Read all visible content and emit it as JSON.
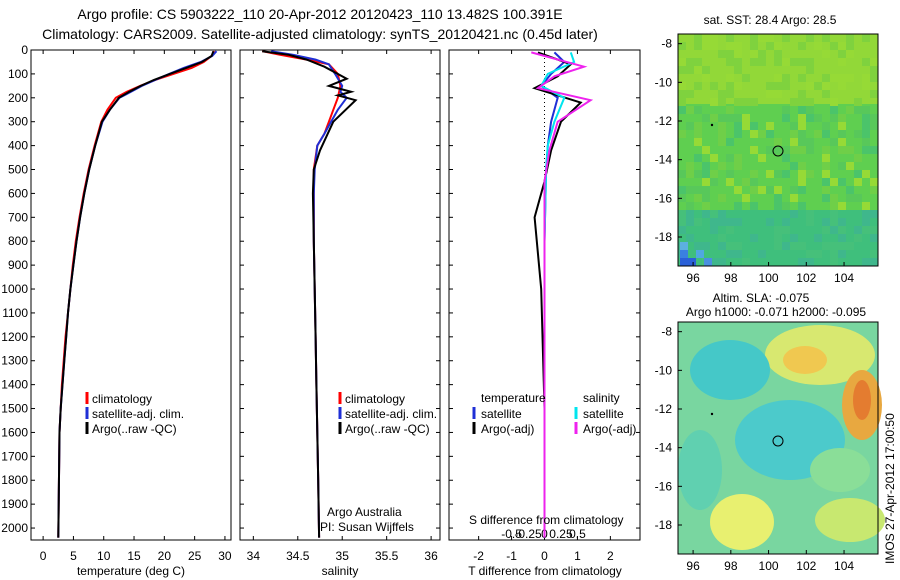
{
  "header": {
    "line1": "Argo profile: CS 5903222_110 20-Apr-2012 20120423_110 13.482S 100.391E",
    "line2": "Climatology: CARS2009. Satellite-adjusted climatology: synTS_20120421.nc (0.45d later)"
  },
  "colors": {
    "climatology": "#ff0000",
    "satellite": "#1f2fd6",
    "argo": "#000000",
    "satellite_salinity": "#00e5ee",
    "argo_salinity_diff": "#ee22ee"
  },
  "chart_data": [
    {
      "id": "temperature",
      "type": "line",
      "xlabel": "temperature (deg C)",
      "ylabel": "",
      "xlim": [
        -2,
        31
      ],
      "ylim": [
        2050,
        0
      ],
      "xticks": [
        0,
        5,
        10,
        15,
        20,
        25,
        30
      ],
      "yticks": [
        0,
        100,
        200,
        300,
        400,
        500,
        600,
        700,
        800,
        900,
        1000,
        1100,
        1200,
        1300,
        1400,
        1500,
        1600,
        1700,
        1800,
        1900,
        2000
      ],
      "legend": [
        "climatology",
        "satellite-adj. clim.",
        "Argo(..raw -QC)"
      ],
      "series": [
        {
          "name": "climatology",
          "color": "#ff0000",
          "x": [
            28.3,
            27.8,
            26.5,
            24.5,
            21.5,
            18.5,
            16,
            13.8,
            12,
            10.6,
            9.6,
            8.5,
            7.5,
            6.7,
            6,
            5.4,
            4.9,
            4.5,
            4.1,
            3.7,
            3.4,
            3.1,
            2.9,
            2.7,
            2.5
          ],
          "y": [
            5,
            25,
            50,
            75,
            100,
            125,
            150,
            175,
            200,
            250,
            300,
            400,
            500,
            600,
            700,
            800,
            900,
            1000,
            1100,
            1200,
            1300,
            1400,
            1500,
            1600,
            2040
          ]
        },
        {
          "name": "satellite-adj. clim.",
          "color": "#1f2fd6",
          "x": [
            28.6,
            27.9,
            26,
            23.2,
            20.8,
            18.5,
            16.3,
            14.5,
            12.6,
            11,
            9.8,
            8.6,
            7.6,
            6.8,
            6.1,
            5.5,
            5,
            4.5,
            4.1,
            3.8,
            3.5,
            3.2,
            2.9,
            2.7,
            2.5
          ],
          "y": [
            5,
            25,
            50,
            75,
            100,
            125,
            150,
            175,
            200,
            250,
            300,
            400,
            500,
            600,
            700,
            800,
            900,
            1000,
            1100,
            1200,
            1300,
            1400,
            1500,
            1600,
            2040
          ]
        },
        {
          "name": "Argo(..raw -QC)",
          "color": "#000000",
          "x": [
            28.1,
            27.8,
            26.2,
            23.6,
            20.9,
            18.3,
            16.1,
            14.2,
            12.5,
            11,
            9.7,
            8.6,
            7.6,
            6.8,
            6.1,
            5.5,
            5,
            4.5,
            4.1,
            3.8,
            3.5,
            3.2,
            2.9,
            2.7,
            2.5
          ],
          "y": [
            5,
            25,
            50,
            75,
            100,
            125,
            150,
            175,
            200,
            250,
            300,
            400,
            500,
            600,
            700,
            800,
            900,
            1000,
            1100,
            1200,
            1300,
            1400,
            1500,
            1600,
            2040
          ]
        }
      ]
    },
    {
      "id": "salinity",
      "type": "line",
      "xlabel": "salinity",
      "ylabel": "",
      "xlim": [
        33.85,
        36.1
      ],
      "ylim": [
        2050,
        0
      ],
      "xticks": [
        34,
        34.5,
        35,
        35.5,
        36
      ],
      "legend": [
        "climatology",
        "satellite-adj. clim.",
        "Argo(..raw -QC)"
      ],
      "annotations": [
        "Argo Australia",
        "PI: Susan Wijffels"
      ],
      "series": [
        {
          "name": "climatology",
          "color": "#ff0000",
          "x": [
            34.1,
            34.3,
            34.6,
            34.85,
            34.95,
            34.98,
            34.95,
            34.9,
            34.85,
            34.8,
            34.72,
            34.68,
            34.68,
            34.68,
            34.69,
            34.7,
            34.71,
            34.72,
            34.73,
            34.74
          ],
          "y": [
            5,
            20,
            40,
            60,
            100,
            150,
            200,
            250,
            300,
            350,
            400,
            500,
            600,
            800,
            1000,
            1200,
            1400,
            1600,
            1800,
            2040
          ]
        },
        {
          "name": "satellite-adj. clim.",
          "color": "#1f2fd6",
          "x": [
            34.2,
            34.45,
            34.7,
            34.85,
            34.92,
            35.0,
            34.98,
            35.05,
            34.95,
            34.8,
            34.72,
            34.69,
            34.68,
            34.68,
            34.69,
            34.7,
            34.71,
            34.72,
            34.73,
            34.74
          ],
          "y": [
            5,
            20,
            40,
            60,
            100,
            150,
            175,
            200,
            250,
            350,
            400,
            500,
            600,
            800,
            1000,
            1200,
            1400,
            1600,
            1800,
            2040
          ]
        },
        {
          "name": "Argo(..raw -QC)",
          "color": "#000000",
          "x": [
            34.1,
            34.4,
            34.6,
            34.8,
            35.05,
            34.85,
            35.1,
            34.95,
            35.15,
            34.9,
            34.75,
            34.68,
            34.67,
            34.68,
            34.69,
            34.7,
            34.71,
            34.72,
            34.73,
            34.74
          ],
          "y": [
            5,
            20,
            40,
            70,
            120,
            150,
            175,
            190,
            210,
            300,
            420,
            500,
            600,
            800,
            1000,
            1200,
            1400,
            1600,
            1800,
            2040
          ]
        }
      ]
    },
    {
      "id": "difference",
      "type": "line",
      "xlabel": "T difference from climatology",
      "xlabel_top": "S difference from climatology",
      "xlim": [
        -2.9,
        2.9
      ],
      "ylim": [
        2050,
        0
      ],
      "xticks": [
        -2,
        -1,
        0,
        1,
        2
      ],
      "xticks_salinity": [
        "-0.5",
        "-0.25",
        "0",
        "0.25",
        "0.5"
      ],
      "legend_left_title": "temperature",
      "legend_right_title": "salinity",
      "legend": [
        "satellite",
        "Argo(-adj)",
        "satellite",
        "Argo(-adj)"
      ],
      "series": [
        {
          "name": "temperature satellite",
          "color": "#1f2fd6",
          "x": [
            0.3,
            0.6,
            0.2,
            -0.1,
            0.4,
            0.2,
            0.1,
            0.05,
            0.0,
            0.0,
            0.0,
            0.0
          ],
          "y": [
            10,
            50,
            100,
            150,
            200,
            300,
            400,
            500,
            800,
            1200,
            1600,
            2040
          ]
        },
        {
          "name": "temperature Argo(-adj)",
          "color": "#000000",
          "x": [
            -0.2,
            0.8,
            0.4,
            -0.3,
            1.1,
            0.5,
            0.2,
            0.0,
            -0.3,
            -0.1,
            0.0,
            0.0
          ],
          "y": [
            10,
            60,
            110,
            160,
            220,
            300,
            420,
            550,
            700,
            1000,
            1500,
            2040
          ]
        },
        {
          "name": "salinity satellite",
          "color": "#00e5ee",
          "x": [
            0.8,
            0.9,
            0.1,
            -0.1,
            0.6,
            0.3,
            0.1,
            0.05,
            0.0,
            0.0,
            0.0,
            0.0
          ],
          "y": [
            10,
            50,
            100,
            150,
            200,
            300,
            400,
            500,
            800,
            1200,
            1600,
            2040
          ]
        },
        {
          "name": "salinity Argo(-adj)",
          "color": "#ee22ee",
          "x": [
            -0.4,
            1.2,
            0.3,
            -0.2,
            1.4,
            0.4,
            0.15,
            0.0,
            0.0,
            0.0,
            0.0,
            0.0
          ],
          "y": [
            10,
            70,
            110,
            160,
            210,
            300,
            420,
            550,
            800,
            1200,
            1600,
            2040
          ]
        }
      ]
    },
    {
      "id": "sst_map",
      "type": "heatmap",
      "title": "sat. SST: 28.4  Argo: 28.5",
      "xlim": [
        95.2,
        105.8
      ],
      "ylim": [
        -19.5,
        -7.5
      ],
      "xticks": [
        96,
        98,
        100,
        102,
        104
      ],
      "yticks": [
        -8,
        -10,
        -12,
        -14,
        -16,
        -18
      ],
      "argo_marker": [
        100.391,
        -13.482
      ]
    },
    {
      "id": "sla_map",
      "type": "heatmap",
      "title": "Altim. SLA: -0.075",
      "subtitle": "Argo h1000: -0.071 h2000: -0.095",
      "xlim": [
        95.2,
        105.8
      ],
      "ylim": [
        -19.5,
        -7.5
      ],
      "xticks": [
        96,
        98,
        100,
        102,
        104
      ],
      "yticks": [
        -8,
        -10,
        -12,
        -14,
        -16,
        -18
      ],
      "argo_marker": [
        100.391,
        -13.482
      ]
    }
  ],
  "footer": {
    "stamp": "IMOS 27-Apr-2012 17:00:50"
  }
}
